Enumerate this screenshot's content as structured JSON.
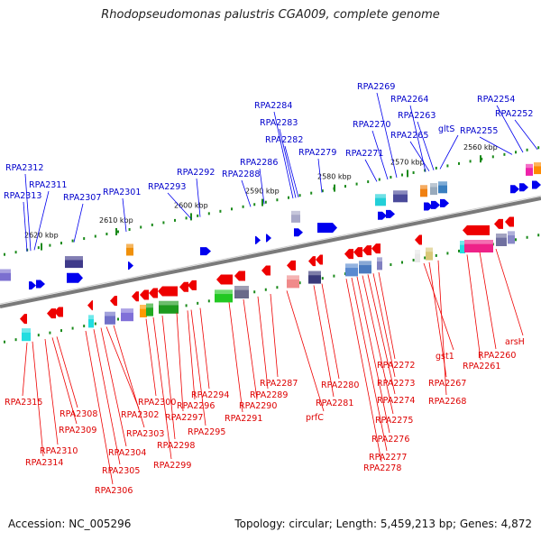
{
  "title": "Rhodopseudomonas palustris CGA009, complete genome",
  "footer": {
    "accession": "Accession: NC_005296",
    "summary": "Topology: circular; Length: 5,459,213 bp; Genes: 4,872"
  },
  "ticks": [
    "2620 kbp",
    "2610 kbp",
    "2600 kbp",
    "2590 kbp",
    "2580 kbp",
    "2570 kbp",
    "2560 kbp"
  ],
  "top_labels": [
    "RPA2312",
    "RPA2311",
    "RPA2313",
    "RPA2307",
    "RPA2301",
    "RPA2293",
    "RPA2292",
    "RPA2288",
    "RPA2286",
    "RPA2284",
    "RPA2283",
    "RPA2282",
    "RPA2279",
    "RPA2271",
    "RPA2270",
    "RPA2269",
    "RPA2264",
    "RPA2263",
    "RPA2265",
    "gltS",
    "RPA2255",
    "RPA2254",
    "RPA2252"
  ],
  "bottom_labels": [
    "RPA2315",
    "RPA2308",
    "RPA2309",
    "RPA2310",
    "RPA2314",
    "RPA2302",
    "RPA2303",
    "RPA2304",
    "RPA2305",
    "RPA2306",
    "RPA2300",
    "RPA2296",
    "RPA2297",
    "RPA2298",
    "RPA2299",
    "RPA2294",
    "RPA2295",
    "RPA2291",
    "RPA2290",
    "RPA2289",
    "RPA2287",
    "prfC",
    "RPA2281",
    "RPA2280",
    "RPA2272",
    "RPA2273",
    "RPA2274",
    "RPA2275",
    "RPA2276",
    "RPA2277",
    "RPA2278",
    "gst1",
    "RPA2267",
    "RPA2268",
    "RPA2261",
    "RPA2260",
    "arsH"
  ],
  "colors": {
    "forward": "#0000ee",
    "reverse": "#ee0000",
    "backbone": "#7a7a7a",
    "tick_dot": "#1a8a1a"
  }
}
